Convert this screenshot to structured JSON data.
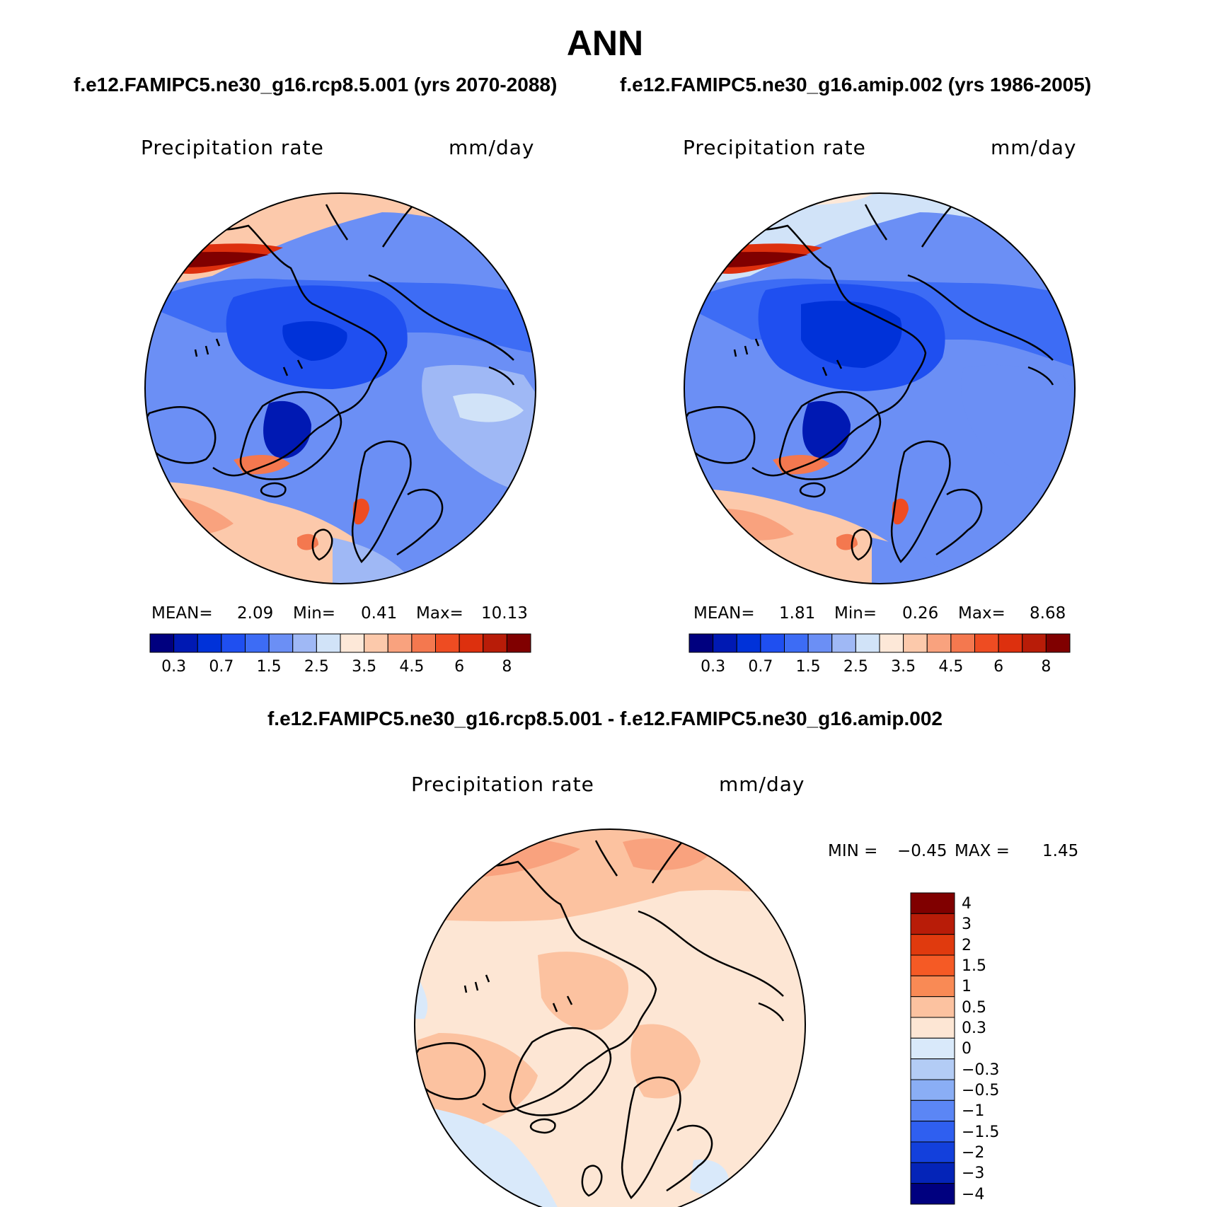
{
  "title": "ANN",
  "top_left": {
    "case_title": "f.e12.FAMIPC5.ne30_g16.rcp8.5.001 (yrs 2070-2088)",
    "variable": "Precipitation rate",
    "units": "mm/day",
    "mean_label": "MEAN=",
    "mean_value": "2.09",
    "min_label": "Min=",
    "min_value": "0.41",
    "max_label": "Max=",
    "max_value": "10.13"
  },
  "top_right": {
    "case_title": "f.e12.FAMIPC5.ne30_g16.amip.002 (yrs 1986-2005)",
    "variable": "Precipitation rate",
    "units": "mm/day",
    "mean_label": "MEAN=",
    "mean_value": "1.81",
    "min_label": "Min=",
    "min_value": "0.26",
    "max_label": "Max=",
    "max_value": "8.68"
  },
  "abs_colorbar": {
    "colors": [
      "#00007f",
      "#0019b3",
      "#0032d9",
      "#1f4ff0",
      "#3d6cf5",
      "#6b8ff5",
      "#9fb8f5",
      "#d1e3f8",
      "#fde8d8",
      "#fcc9ab",
      "#f9a27e",
      "#f4784f",
      "#ee4c22",
      "#dd300e",
      "#b81c08",
      "#800000"
    ],
    "tick_labels": [
      "0.3",
      "0.7",
      "1.5",
      "2.5",
      "3.5",
      "4.5",
      "6",
      "8"
    ]
  },
  "diff": {
    "title": "f.e12.FAMIPC5.ne30_g16.rcp8.5.001 - f.e12.FAMIPC5.ne30_g16.amip.002",
    "variable": "Precipitation rate",
    "units": "mm/day",
    "min_label": "MIN =",
    "min_value": "−0.45",
    "max_label": "MAX =",
    "max_value": "1.45",
    "colors_top_to_bottom": [
      "#800000",
      "#b81c08",
      "#e03a0e",
      "#f55a25",
      "#f98a55",
      "#fcc2a0",
      "#fde6d4",
      "#d9e9fa",
      "#b3ccf5",
      "#8aaef5",
      "#5b86f5",
      "#2f5ff0",
      "#1340dc",
      "#0424b8",
      "#00007f"
    ],
    "tick_labels": [
      "4",
      "3",
      "2",
      "1.5",
      "1",
      "0.5",
      "0.3",
      "0",
      "−0.3",
      "−0.5",
      "−1",
      "−1.5",
      "−2",
      "−3",
      "−4"
    ]
  }
}
